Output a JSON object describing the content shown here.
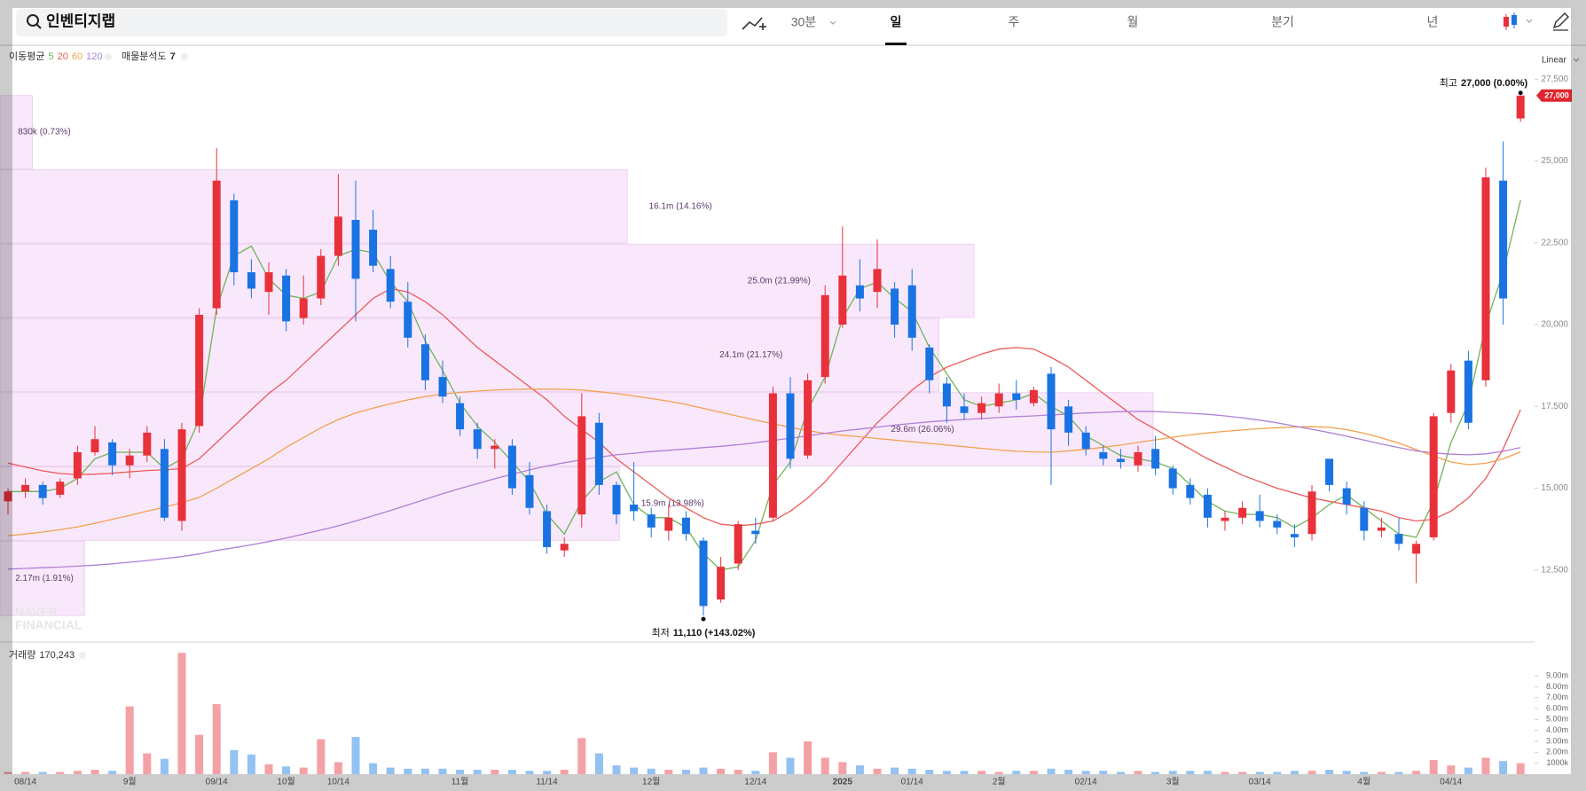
{
  "chart_data": {
    "type": "candlestick",
    "stock_name": "인벤티지랩",
    "intervals": [
      "30분",
      "일",
      "주",
      "월",
      "분기",
      "년"
    ],
    "selected_interval": "일",
    "scale_label": "Linear",
    "categories": [
      null,
      "08/14",
      null,
      null,
      null,
      null,
      null,
      "9월",
      null,
      null,
      null,
      null,
      "09/14",
      null,
      null,
      null,
      "10월",
      null,
      null,
      "10/14",
      null,
      null,
      null,
      null,
      null,
      null,
      "11월",
      null,
      null,
      null,
      null,
      "11/14",
      null,
      null,
      null,
      null,
      null,
      "12월",
      null,
      null,
      null,
      null,
      null,
      "12/14",
      null,
      null,
      null,
      null,
      "2025",
      null,
      null,
      null,
      "01/14",
      null,
      null,
      null,
      null,
      "2월",
      null,
      null,
      null,
      null,
      "02/14",
      null,
      null,
      null,
      null,
      "3월",
      null,
      null,
      null,
      null,
      "03/14",
      null,
      null,
      null,
      null,
      null,
      "4월",
      null,
      null,
      null,
      null,
      "04/14",
      null,
      null,
      null,
      null
    ],
    "open": [
      14600,
      14900,
      15100,
      14800,
      15300,
      16100,
      16400,
      15700,
      16000,
      16200,
      14000,
      16900,
      20500,
      23800,
      21600,
      21000,
      21500,
      20200,
      20800,
      22100,
      23200,
      22900,
      21700,
      20700,
      19400,
      18400,
      17600,
      16800,
      16200,
      16300,
      15400,
      14300,
      13100,
      14200,
      17000,
      15100,
      14500,
      14200,
      13700,
      14100,
      13400,
      11600,
      12700,
      13700,
      14100,
      17900,
      16000,
      18400,
      20000,
      21200,
      21000,
      21100,
      21200,
      19300,
      18200,
      17500,
      17300,
      17500,
      17900,
      17600,
      18500,
      17500,
      16700,
      16100,
      15900,
      15700,
      16200,
      15600,
      15100,
      14800,
      14000,
      14100,
      14300,
      14000,
      13600,
      13600,
      15900,
      15000,
      14400,
      13700,
      13600,
      13000,
      13500,
      17300,
      18900,
      18300,
      24400,
      26300
    ],
    "high": [
      15000,
      15300,
      15200,
      15300,
      16300,
      16900,
      16500,
      16200,
      16900,
      16500,
      17000,
      20500,
      25400,
      24000,
      22000,
      21900,
      21700,
      21500,
      22300,
      24600,
      24400,
      23500,
      22100,
      21300,
      19700,
      18900,
      17800,
      17000,
      16500,
      16500,
      15800,
      14500,
      13500,
      17900,
      17300,
      15200,
      15800,
      14400,
      14500,
      14300,
      13500,
      12900,
      14000,
      14100,
      18100,
      18400,
      18500,
      21200,
      23000,
      22000,
      22600,
      21300,
      21700,
      19400,
      18400,
      17900,
      17800,
      18200,
      18300,
      18100,
      18700,
      17700,
      16900,
      16300,
      16200,
      16300,
      16600,
      15700,
      15300,
      15000,
      14300,
      14600,
      14800,
      14200,
      13900,
      15100,
      15900,
      15200,
      14600,
      14100,
      14100,
      13400,
      17300,
      18800,
      19200,
      24800,
      25600,
      27000
    ],
    "low": [
      14200,
      14700,
      14500,
      14700,
      15100,
      16000,
      15400,
      15300,
      15800,
      14000,
      13700,
      16700,
      20300,
      21200,
      20800,
      20300,
      19800,
      20000,
      20600,
      21800,
      20100,
      21600,
      20500,
      19300,
      18000,
      17600,
      16600,
      15900,
      15600,
      14800,
      14200,
      13000,
      12900,
      13800,
      14800,
      13900,
      14000,
      13500,
      13400,
      13400,
      11110,
      11500,
      12500,
      13300,
      14000,
      15600,
      15900,
      18200,
      19900,
      20400,
      20500,
      19600,
      19200,
      17900,
      17000,
      17100,
      17100,
      17300,
      17400,
      17500,
      15100,
      16300,
      16000,
      15700,
      15600,
      15500,
      15400,
      14800,
      14500,
      13800,
      13700,
      13900,
      13800,
      13600,
      13200,
      13400,
      14900,
      14200,
      13400,
      13500,
      13100,
      12100,
      13400,
      17000,
      16800,
      18100,
      20000,
      26200
    ],
    "close": [
      14900,
      15100,
      14700,
      15200,
      16100,
      16500,
      15700,
      16000,
      16700,
      14100,
      16800,
      20300,
      24400,
      21600,
      21100,
      21600,
      20100,
      20800,
      22100,
      23300,
      21400,
      21800,
      20700,
      19600,
      18300,
      17800,
      16800,
      16200,
      16300,
      15000,
      14400,
      13200,
      13300,
      17200,
      15100,
      14200,
      14300,
      13800,
      14100,
      13600,
      11400,
      12600,
      13900,
      13600,
      17900,
      15900,
      18300,
      20900,
      21500,
      20800,
      21700,
      20000,
      19600,
      18300,
      17500,
      17300,
      17600,
      17900,
      17700,
      18000,
      16800,
      16700,
      16200,
      15900,
      15800,
      16100,
      15600,
      15000,
      14700,
      14100,
      14100,
      14400,
      14000,
      13800,
      13500,
      14900,
      15100,
      14500,
      13700,
      13800,
      13300,
      13300,
      17200,
      18600,
      17000,
      24500,
      20800,
      27000
    ],
    "up_color": "#e8313a",
    "down_color": "#1a73e3",
    "ylim": [
      10300,
      28430
    ],
    "yticks": [
      {
        "value": 12500,
        "label": "12,500"
      },
      {
        "value": 15000,
        "label": "15,000"
      },
      {
        "value": 17500,
        "label": "17,500"
      },
      {
        "value": 20000,
        "label": "20,000"
      },
      {
        "value": 22500,
        "label": "22,500"
      },
      {
        "value": 25000,
        "label": "25,000"
      },
      {
        "value": 27500,
        "label": "27,500"
      }
    ],
    "ma_label": "이동평균",
    "series": [
      {
        "name": "5",
        "color": "#6fb35a",
        "values": [
          14900,
          14900,
          14900,
          15000,
          15300,
          15900,
          16100,
          16100,
          16100,
          15600,
          15900,
          17100,
          20500,
          22100,
          22400,
          21400,
          20900,
          20800,
          21000,
          22100,
          22300,
          22200,
          21300,
          20700,
          19500,
          18600,
          17600,
          16900,
          16400,
          15800,
          15200,
          14200,
          13600,
          14600,
          15200,
          15500,
          14500,
          14100,
          14100,
          13800,
          13000,
          12500,
          12600,
          13400,
          15100,
          15800,
          17400,
          18400,
          20200,
          21100,
          21300,
          20800,
          20400,
          19300,
          18500,
          17700,
          17500,
          17600,
          17700,
          17900,
          17500,
          17200,
          16600,
          16300,
          16000,
          15900,
          15800,
          15600,
          15100,
          14600,
          14300,
          14200,
          14200,
          14100,
          13800,
          14100,
          14500,
          14800,
          14400,
          14000,
          13600,
          13500,
          14600,
          16400,
          17600,
          20000,
          21600,
          23800
        ]
      },
      {
        "name": "20",
        "color": "#ec5a5a",
        "values": [
          15770,
          15650,
          15530,
          15450,
          15420,
          15430,
          15460,
          15500,
          15540,
          15560,
          15600,
          15900,
          16400,
          16900,
          17400,
          17900,
          18300,
          18800,
          19300,
          19800,
          20300,
          20800,
          21100,
          21000,
          20700,
          20300,
          19800,
          19300,
          18900,
          18500,
          18100,
          17700,
          17200,
          16800,
          16400,
          15900,
          15500,
          15100,
          14700,
          14400,
          14100,
          13900,
          13850,
          13900,
          14000,
          14300,
          14700,
          15200,
          15800,
          16400,
          17000,
          17500,
          18000,
          18400,
          18700,
          18900,
          19100,
          19250,
          19300,
          19250,
          19000,
          18700,
          18300,
          17900,
          17500,
          17100,
          16800,
          16500,
          16200,
          15900,
          15650,
          15400,
          15200,
          15000,
          14850,
          14700,
          14600,
          14500,
          14400,
          14300,
          14100,
          14000,
          14050,
          14300,
          14700,
          15300,
          16200,
          17400
        ]
      },
      {
        "name": "60",
        "color": "#f3a04f",
        "values": [
          13550,
          13600,
          13660,
          13730,
          13820,
          13930,
          14050,
          14170,
          14300,
          14420,
          14560,
          14720,
          15000,
          15300,
          15600,
          15900,
          16250,
          16550,
          16850,
          17100,
          17300,
          17450,
          17580,
          17700,
          17800,
          17880,
          17930,
          17970,
          18000,
          18020,
          18030,
          18030,
          18020,
          18000,
          17950,
          17890,
          17820,
          17740,
          17660,
          17560,
          17440,
          17320,
          17200,
          17080,
          16970,
          16860,
          16760,
          16680,
          16620,
          16570,
          16520,
          16470,
          16420,
          16370,
          16320,
          16270,
          16220,
          16170,
          16130,
          16110,
          16100,
          16140,
          16190,
          16250,
          16320,
          16400,
          16480,
          16560,
          16630,
          16690,
          16740,
          16780,
          16820,
          16850,
          16870,
          16880,
          16860,
          16790,
          16680,
          16540,
          16380,
          16180,
          15980,
          15800,
          15720,
          15760,
          15900,
          16110
        ]
      },
      {
        "name": "120",
        "color": "#b07fd6",
        "values": [
          12530,
          12550,
          12570,
          12590,
          12620,
          12650,
          12690,
          12740,
          12790,
          12850,
          12910,
          12990,
          13100,
          13180,
          13270,
          13370,
          13480,
          13600,
          13720,
          13850,
          14000,
          14160,
          14320,
          14490,
          14660,
          14830,
          14990,
          15140,
          15290,
          15430,
          15560,
          15680,
          15780,
          15870,
          15950,
          16020,
          16070,
          16120,
          16160,
          16200,
          16240,
          16280,
          16330,
          16390,
          16460,
          16530,
          16600,
          16680,
          16750,
          16810,
          16870,
          16930,
          16980,
          17030,
          17070,
          17100,
          17130,
          17160,
          17190,
          17210,
          17240,
          17270,
          17300,
          17320,
          17340,
          17350,
          17340,
          17320,
          17290,
          17260,
          17210,
          17150,
          17080,
          17000,
          16900,
          16800,
          16700,
          16590,
          16470,
          16350,
          16240,
          16140,
          16080,
          16040,
          16020,
          16050,
          16130,
          16240
        ]
      }
    ],
    "profile": {
      "label": "매물분석도",
      "count": 7,
      "color": "#f9e8fb",
      "lows": [
        24760,
        22490,
        20220,
        17950,
        15680,
        13410,
        11110
      ],
      "highs": [
        27000,
        24730,
        22460,
        20190,
        17920,
        15650,
        13380
      ],
      "values": [
        830000,
        16100000,
        25000000,
        24100000,
        29600000,
        15900000,
        2170000
      ],
      "value_labels": [
        "830k (0.73%)",
        "16.1m (14.16%)",
        "25.0m (21.99%)",
        "24.1m (21.17%)",
        "29.6m (26.06%)",
        "15.9m (13.98%)",
        "2.17m (1.91%)"
      ]
    },
    "high_annotation": {
      "label": "최고",
      "text": "27,000 (0.00%)"
    },
    "low_annotation": {
      "label": "최저",
      "text": "11,110 (+143.02%)"
    },
    "last_price": {
      "value": 27000,
      "label": "27,000"
    },
    "watermark": [
      "NAVER",
      "FINANCIAL"
    ],
    "volume": {
      "label": "거래량",
      "current": "170,243",
      "up_color": "#f4a1a6",
      "down_color": "#93c1f2",
      "values": [
        200000,
        200000,
        200000,
        200000,
        300000,
        400000,
        300000,
        6200000,
        1900000,
        1400000,
        11100000,
        3600000,
        6400000,
        2200000,
        1800000,
        900000,
        700000,
        600000,
        3200000,
        1100000,
        3400000,
        1000000,
        600000,
        500000,
        500000,
        500000,
        400000,
        400000,
        400000,
        400000,
        300000,
        300000,
        400000,
        3300000,
        1900000,
        800000,
        600000,
        500000,
        400000,
        400000,
        600000,
        500000,
        400000,
        300000,
        2000000,
        1500000,
        3000000,
        1500000,
        1100000,
        800000,
        500000,
        600000,
        500000,
        400000,
        300000,
        300000,
        300000,
        200000,
        300000,
        300000,
        500000,
        400000,
        300000,
        300000,
        200000,
        300000,
        200000,
        300000,
        300000,
        300000,
        200000,
        200000,
        200000,
        200000,
        300000,
        300000,
        400000,
        300000,
        200000,
        200000,
        200000,
        300000,
        1300000,
        800000,
        600000,
        1500000,
        1200000,
        1000000
      ],
      "ylim": [
        0,
        11600000
      ],
      "yticks": [
        {
          "value": 1000000,
          "label": "1000k"
        },
        {
          "value": 2000000,
          "label": "2.00m"
        },
        {
          "value": 3000000,
          "label": "3.00m"
        },
        {
          "value": 4000000,
          "label": "4.00m"
        },
        {
          "value": 5000000,
          "label": "5.00m"
        },
        {
          "value": 6000000,
          "label": "6.00m"
        },
        {
          "value": 7000000,
          "label": "7.00m"
        },
        {
          "value": 8000000,
          "label": "8.00m"
        },
        {
          "value": 9000000,
          "label": "9.00m"
        }
      ]
    }
  }
}
